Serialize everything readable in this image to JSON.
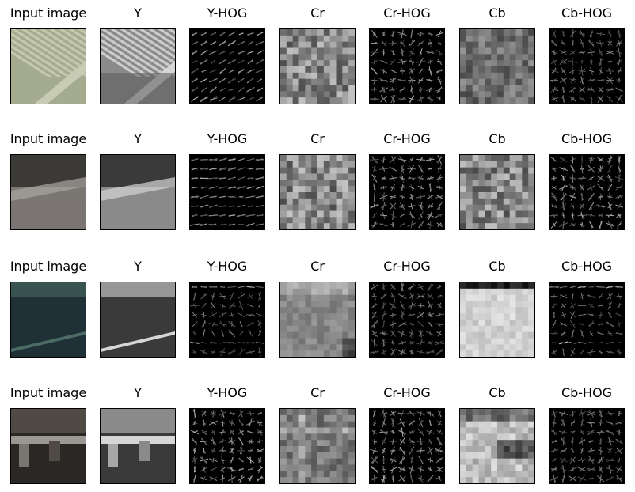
{
  "figure": {
    "rows": [
      {
        "panels": [
          {
            "title": "Input image",
            "kind": "photo",
            "palette": [
              "#6f735c",
              "#a5ab8e",
              "#c8ccb5"
            ],
            "pattern": "diagonal-stripes"
          },
          {
            "title": "Y",
            "kind": "gray",
            "pattern": "diagonal-stripes"
          },
          {
            "title": "Y-HOG",
            "kind": "hog",
            "pattern": "diagonal"
          },
          {
            "title": "Cr",
            "kind": "gray-noise",
            "pattern": "blocks"
          },
          {
            "title": "Cr-HOG",
            "kind": "hog",
            "pattern": "mixed"
          },
          {
            "title": "Cb",
            "kind": "gray-noise",
            "pattern": "blocks-dark"
          },
          {
            "title": "Cb-HOG",
            "kind": "hog",
            "pattern": "mixed-dim"
          }
        ]
      },
      {
        "panels": [
          {
            "title": "Input image",
            "kind": "photo",
            "palette": [
              "#3c3a36",
              "#7a7672",
              "#a9a6a2"
            ],
            "pattern": "horizon"
          },
          {
            "title": "Y",
            "kind": "gray",
            "pattern": "horizon"
          },
          {
            "title": "Y-HOG",
            "kind": "hog",
            "pattern": "horizontal"
          },
          {
            "title": "Cr",
            "kind": "gray-noise",
            "pattern": "blocks"
          },
          {
            "title": "Cr-HOG",
            "kind": "hog",
            "pattern": "mixed"
          },
          {
            "title": "Cb",
            "kind": "gray-noise",
            "pattern": "blocks"
          },
          {
            "title": "Cb-HOG",
            "kind": "hog",
            "pattern": "mixed"
          }
        ]
      },
      {
        "panels": [
          {
            "title": "Input image",
            "kind": "photo",
            "palette": [
              "#1f3136",
              "#2d4546",
              "#4b6b64"
            ],
            "pattern": "dark-band"
          },
          {
            "title": "Y",
            "kind": "gray",
            "pattern": "dark-band"
          },
          {
            "title": "Y-HOG",
            "kind": "hog",
            "pattern": "sparse"
          },
          {
            "title": "Cr",
            "kind": "gray-noise",
            "pattern": "smooth"
          },
          {
            "title": "Cr-HOG",
            "kind": "hog",
            "pattern": "mixed-dim"
          },
          {
            "title": "Cb",
            "kind": "gray-noise",
            "pattern": "smooth-light"
          },
          {
            "title": "Cb-HOG",
            "kind": "hog",
            "pattern": "sparse"
          }
        ]
      },
      {
        "panels": [
          {
            "title": "Input image",
            "kind": "photo",
            "palette": [
              "#2a2724",
              "#4f4a44",
              "#9a9890"
            ],
            "pattern": "structure"
          },
          {
            "title": "Y",
            "kind": "gray",
            "pattern": "structure"
          },
          {
            "title": "Y-HOG",
            "kind": "hog",
            "pattern": "mixed"
          },
          {
            "title": "Cr",
            "kind": "gray-noise",
            "pattern": "structure-soft"
          },
          {
            "title": "Cr-HOG",
            "kind": "hog",
            "pattern": "mixed"
          },
          {
            "title": "Cb",
            "kind": "gray-noise",
            "pattern": "structure-light"
          },
          {
            "title": "Cb-HOG",
            "kind": "hog",
            "pattern": "mixed-dim"
          }
        ]
      }
    ]
  }
}
